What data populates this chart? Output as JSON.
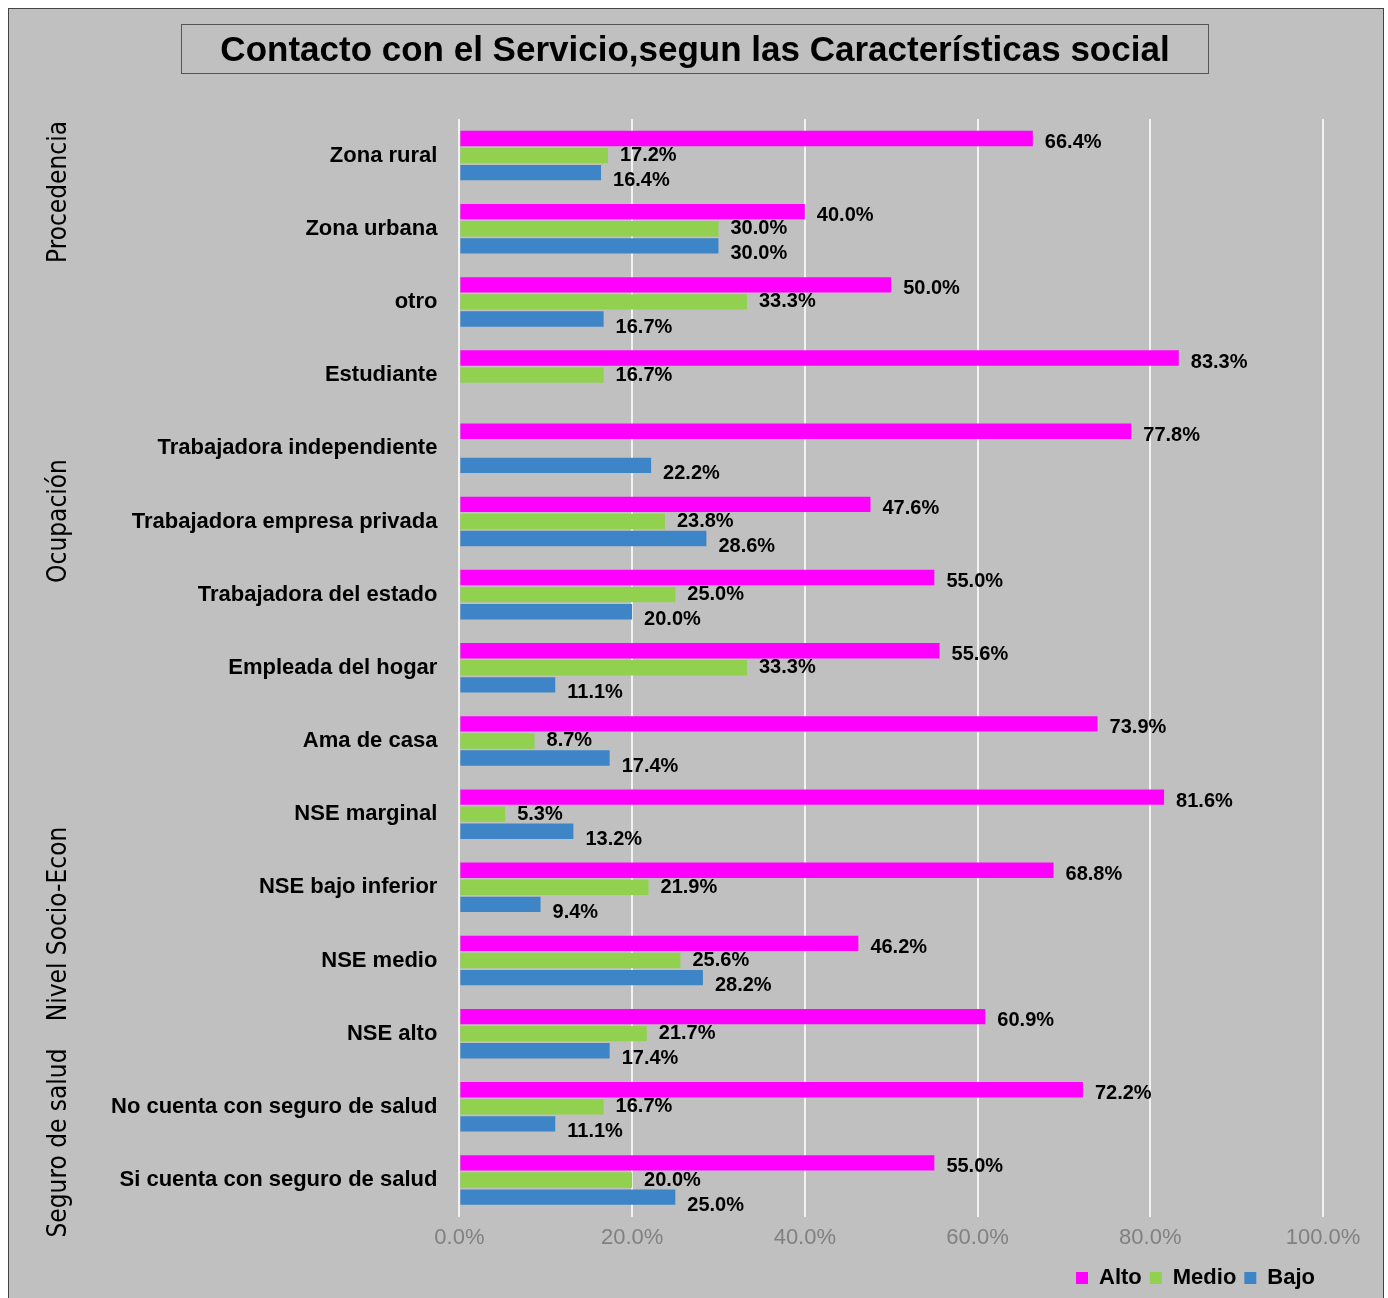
{
  "chart_data": {
    "type": "bar",
    "orientation": "horizontal",
    "title": "Contacto con el Servicio,segun las Características social",
    "categories": [
      "Zona rural",
      "Zona urbana",
      "otro",
      "Estudiante",
      "Trabajadora independiente",
      "Trabajadora empresa privada",
      "Trabajadora del estado",
      "Empleada del hogar",
      "Ama de casa",
      "NSE marginal",
      "NSE bajo inferior",
      "NSE medio",
      "NSE alto",
      "No cuenta con seguro de salud",
      "Si cuenta con seguro de salud"
    ],
    "series": [
      {
        "name": "Alto",
        "color": "#ff00ff",
        "values": [
          66.4,
          40.0,
          50.0,
          83.3,
          77.8,
          47.6,
          55.0,
          55.6,
          73.9,
          81.6,
          68.8,
          46.2,
          60.9,
          72.2,
          55.0
        ],
        "value_labels": [
          "66.4%",
          "40.0%",
          "50.0%",
          "83.3%",
          "77.8%",
          "47.6%",
          "55.0%",
          "55.6%",
          "73.9%",
          "81.6%",
          "68.8%",
          "46.2%",
          "60.9%",
          "72.2%",
          "55.0%"
        ]
      },
      {
        "name": "Medio",
        "color": "#92d050",
        "values": [
          17.2,
          30.0,
          33.3,
          16.7,
          null,
          23.8,
          25.0,
          33.3,
          8.7,
          5.3,
          21.9,
          25.6,
          21.7,
          16.7,
          20.0
        ],
        "value_labels": [
          "17.2%",
          "30.0%",
          "33.3%",
          "16.7%",
          null,
          "23.8%",
          "25.0%",
          "33.3%",
          "8.7%",
          "5.3%",
          "21.9%",
          "25.6%",
          "21.7%",
          "16.7%",
          "20.0%"
        ]
      },
      {
        "name": "Bajo",
        "color": "#3d85c6",
        "values": [
          16.4,
          30.0,
          16.7,
          null,
          22.2,
          28.6,
          20.0,
          11.1,
          17.4,
          13.2,
          9.4,
          28.2,
          17.4,
          11.1,
          25.0
        ],
        "value_labels": [
          "16.4%",
          "30.0%",
          "16.7%",
          null,
          "22.2%",
          "28.6%",
          "20.0%",
          "11.1%",
          "17.4%",
          "13.2%",
          "9.4%",
          "28.2%",
          "17.4%",
          "11.1%",
          "25.0%"
        ]
      }
    ],
    "xlim": [
      0,
      100
    ],
    "xticks": [
      {
        "value": 0,
        "label": "0.0%"
      },
      {
        "value": 20,
        "label": "20.0%"
      },
      {
        "value": 40,
        "label": "40.0%"
      },
      {
        "value": 60,
        "label": "60.0%"
      },
      {
        "value": 80,
        "label": "80.0%"
      },
      {
        "value": 100,
        "label": "100.0%"
      }
    ],
    "grid": "x",
    "legend": "bottom right",
    "annotations": [
      "Procedencia",
      "Ocupación",
      "Nivel  Socio-Econ",
      "Seguro de salud"
    ]
  }
}
